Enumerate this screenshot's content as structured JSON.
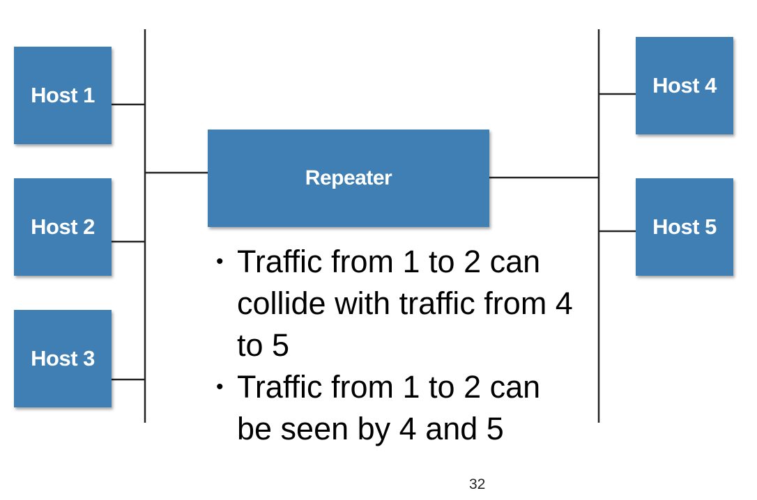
{
  "hosts": {
    "host1": "Host 1",
    "host2": "Host 2",
    "host3": "Host 3",
    "host4": "Host 4",
    "host5": "Host 5"
  },
  "repeater": "Repeater",
  "bullets": [
    "Traffic from 1 to 2 can collide with traffic from 4 to 5",
    "Traffic from 1 to 2 can be seen by 4 and 5"
  ],
  "page_number": "32",
  "colors": {
    "box": "#3f7fb3",
    "wire": "#222222"
  }
}
